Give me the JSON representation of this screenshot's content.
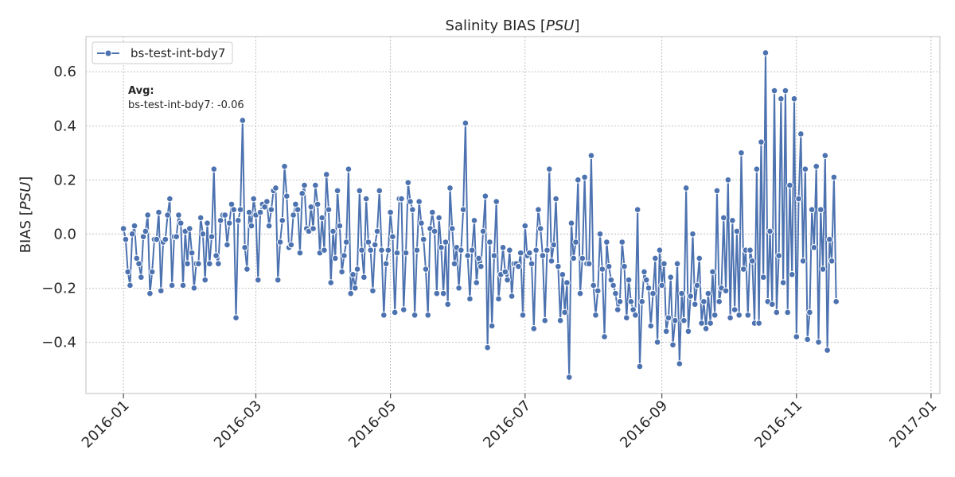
{
  "chart_data": {
    "type": "line",
    "title": "Salinity BIAS [PSU]",
    "title_parts": {
      "prefix": "Salinity BIAS [",
      "unit": "PSU",
      "suffix": "]"
    },
    "xlabel": "",
    "ylabel": "BIAS [PSU]",
    "ylabel_parts": {
      "prefix": "BIAS [",
      "unit": "PSU",
      "suffix": "]"
    },
    "xlim": [
      "2015-12-15",
      "2017-01-05"
    ],
    "ylim": [
      -0.59,
      0.73
    ],
    "grid": true,
    "legend_position": "top-left",
    "x_ticks": [
      {
        "value": "2016-01-01",
        "label": "2016-01"
      },
      {
        "value": "2016-03-01",
        "label": "2016-03"
      },
      {
        "value": "2016-05-01",
        "label": "2016-05"
      },
      {
        "value": "2016-07-01",
        "label": "2016-07"
      },
      {
        "value": "2016-09-01",
        "label": "2016-09"
      },
      {
        "value": "2016-11-01",
        "label": "2016-11"
      },
      {
        "value": "2017-01-01",
        "label": "2017-01"
      }
    ],
    "y_ticks": [
      {
        "value": 0.6,
        "label": "0.6"
      },
      {
        "value": 0.4,
        "label": "0.4"
      },
      {
        "value": 0.2,
        "label": "0.2"
      },
      {
        "value": 0.0,
        "label": "0.0"
      },
      {
        "value": -0.2,
        "label": "−0.2"
      },
      {
        "value": -0.4,
        "label": "−0.4"
      }
    ],
    "annotation": {
      "heading": "Avg:",
      "text": "bs-test-int-bdy7: -0.06"
    },
    "series": [
      {
        "name": "bs-test-int-bdy7",
        "color": "#4c72b0",
        "start_date": "2016-01-01",
        "step_days": 1,
        "values": [
          0.02,
          -0.02,
          -0.14,
          -0.19,
          0.0,
          0.03,
          -0.09,
          -0.11,
          -0.16,
          -0.01,
          0.01,
          0.07,
          -0.22,
          -0.14,
          -0.02,
          -0.02,
          0.08,
          -0.21,
          -0.03,
          -0.02,
          0.07,
          0.13,
          -0.19,
          -0.01,
          -0.01,
          0.07,
          0.04,
          -0.19,
          0.01,
          -0.11,
          0.02,
          -0.07,
          -0.2,
          -0.11,
          -0.11,
          0.06,
          0.0,
          -0.17,
          0.04,
          -0.11,
          -0.01,
          0.24,
          -0.08,
          -0.11,
          0.05,
          0.07,
          0.07,
          -0.04,
          0.04,
          0.11,
          0.09,
          -0.31,
          0.05,
          0.09,
          0.42,
          -0.05,
          -0.13,
          0.08,
          0.03,
          0.13,
          0.07,
          -0.17,
          0.08,
          0.11,
          0.1,
          0.12,
          0.03,
          0.09,
          0.16,
          0.17,
          -0.17,
          -0.03,
          0.05,
          0.25,
          0.14,
          -0.05,
          -0.04,
          0.07,
          0.11,
          0.09,
          -0.07,
          0.15,
          0.18,
          0.02,
          0.01,
          0.1,
          0.02,
          0.18,
          0.11,
          -0.07,
          0.06,
          -0.06,
          0.22,
          0.09,
          -0.18,
          0.01,
          -0.09,
          0.16,
          0.03,
          -0.14,
          -0.08,
          -0.03,
          0.24,
          -0.22,
          -0.15,
          -0.2,
          -0.13,
          0.16,
          -0.06,
          -0.16,
          0.13,
          -0.03,
          -0.06,
          -0.21,
          -0.04,
          0.01,
          0.16,
          -0.06,
          -0.3,
          -0.11,
          -0.06,
          0.08,
          -0.01,
          -0.29,
          -0.07,
          0.13,
          0.13,
          -0.28,
          -0.07,
          0.19,
          0.12,
          0.09,
          -0.3,
          -0.06,
          0.12,
          0.04,
          -0.02,
          -0.13,
          -0.3,
          0.02,
          0.08,
          0.01,
          -0.22,
          0.06,
          -0.05,
          -0.22,
          -0.03,
          -0.26,
          0.17,
          0.02,
          -0.11,
          -0.05,
          -0.2,
          -0.06,
          0.09,
          0.41,
          -0.08,
          -0.24,
          -0.06,
          0.05,
          -0.18,
          -0.09,
          -0.12,
          0.01,
          0.14,
          -0.42,
          -0.03,
          -0.34,
          -0.08,
          0.12,
          -0.24,
          -0.15,
          -0.05,
          -0.14,
          -0.17,
          -0.06,
          -0.23,
          -0.11,
          -0.11,
          -0.12,
          -0.07,
          -0.3,
          0.03,
          -0.08,
          -0.07,
          -0.11,
          -0.35,
          -0.06,
          0.09,
          0.02,
          -0.08,
          -0.32,
          -0.06,
          0.24,
          -0.1,
          -0.04,
          0.13,
          -0.12,
          -0.32,
          -0.15,
          -0.29,
          -0.18,
          -0.53,
          0.04,
          -0.09,
          -0.03,
          0.2,
          -0.22,
          -0.09,
          0.21,
          -0.11,
          -0.11,
          0.29,
          -0.19,
          -0.3,
          -0.21,
          0.0,
          -0.13,
          -0.38,
          -0.03,
          -0.12,
          -0.17,
          -0.19,
          -0.22,
          -0.28,
          -0.25,
          -0.03,
          -0.12,
          -0.31,
          -0.17,
          -0.25,
          -0.28,
          -0.3,
          0.09,
          -0.49,
          -0.25,
          -0.14,
          -0.17,
          -0.2,
          -0.34,
          -0.22,
          -0.09,
          -0.4,
          -0.06,
          -0.19,
          -0.11,
          -0.36,
          -0.31,
          -0.16,
          -0.41,
          -0.32,
          -0.11,
          -0.48,
          -0.22,
          -0.32,
          0.17,
          -0.36,
          -0.23,
          0.0,
          -0.26,
          -0.19,
          -0.09,
          -0.33,
          -0.25,
          -0.35,
          -0.22,
          -0.33,
          -0.14,
          -0.3,
          0.16,
          -0.25,
          -0.2,
          0.06,
          -0.21,
          0.2,
          -0.31,
          0.05,
          -0.28,
          0.01,
          -0.3,
          0.3,
          -0.13,
          -0.06,
          -0.3,
          -0.06,
          -0.1,
          -0.33,
          0.24,
          -0.33,
          0.34,
          -0.16,
          0.67,
          -0.25,
          0.01,
          -0.26,
          0.53,
          -0.29,
          -0.08,
          0.5,
          -0.18,
          0.53,
          -0.29,
          0.18,
          -0.15,
          0.5,
          -0.38,
          0.13,
          0.37,
          -0.1,
          0.24,
          -0.39,
          -0.29,
          0.09,
          -0.05,
          0.25,
          -0.4,
          0.09,
          -0.13,
          0.29,
          -0.43,
          -0.02,
          -0.1,
          0.21,
          -0.25
        ]
      }
    ]
  }
}
